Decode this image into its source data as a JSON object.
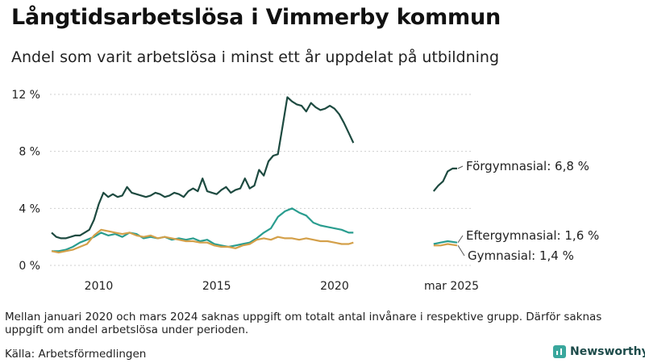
{
  "title": "Långtidsarbetslösa i Vimmerby kommun",
  "subtitle": "Andel som varit arbetslösa i minst ett år uppdelat på utbildning",
  "note": "Mellan januari 2020 och mars 2024 saknas uppgift om totalt antal invånare i respektive grupp. Därför saknas uppgift om andel arbetslösa under perioden.",
  "source": "Källa: Arbetsförmedlingen",
  "brand": "Newsworthy",
  "brand_icon": "newsworthy-logo-icon",
  "chart_data": {
    "type": "line",
    "ylim": [
      0,
      12
    ],
    "yticks": [
      0,
      4,
      8,
      12
    ],
    "ytick_labels": [
      "0 %",
      "4 %",
      "8 %",
      "12 %"
    ],
    "xticks": [
      2010,
      2015,
      2020,
      2025.2
    ],
    "xtick_labels": [
      "2010",
      "2015",
      "2020",
      "mar 2025"
    ],
    "grid": "horizontal",
    "colors": {
      "Förgymnasial": "#1d4a40",
      "Eftergymnasial": "#2a9d8f",
      "Gymnasial": "#d4a04a"
    },
    "series": [
      {
        "name": "Förgymnasial",
        "end_label": "Förgymnasial: 6,8 %",
        "segments": [
          [
            [
              2008.0,
              2.3
            ],
            [
              2008.2,
              2.0
            ],
            [
              2008.4,
              1.9
            ],
            [
              2008.6,
              1.9
            ],
            [
              2008.8,
              2.0
            ],
            [
              2009.0,
              2.1
            ],
            [
              2009.2,
              2.1
            ],
            [
              2009.4,
              2.3
            ],
            [
              2009.6,
              2.5
            ],
            [
              2009.8,
              3.2
            ],
            [
              2010.0,
              4.3
            ],
            [
              2010.2,
              5.1
            ],
            [
              2010.4,
              4.8
            ],
            [
              2010.6,
              5.0
            ],
            [
              2010.8,
              4.8
            ],
            [
              2011.0,
              4.9
            ],
            [
              2011.2,
              5.5
            ],
            [
              2011.4,
              5.1
            ],
            [
              2011.6,
              5.0
            ],
            [
              2011.8,
              4.9
            ],
            [
              2012.0,
              4.8
            ],
            [
              2012.2,
              4.9
            ],
            [
              2012.4,
              5.1
            ],
            [
              2012.6,
              5.0
            ],
            [
              2012.8,
              4.8
            ],
            [
              2013.0,
              4.9
            ],
            [
              2013.2,
              5.1
            ],
            [
              2013.4,
              5.0
            ],
            [
              2013.6,
              4.8
            ],
            [
              2013.8,
              5.2
            ],
            [
              2014.0,
              5.4
            ],
            [
              2014.2,
              5.2
            ],
            [
              2014.4,
              6.1
            ],
            [
              2014.6,
              5.2
            ],
            [
              2014.8,
              5.1
            ],
            [
              2015.0,
              5.0
            ],
            [
              2015.2,
              5.3
            ],
            [
              2015.4,
              5.5
            ],
            [
              2015.6,
              5.1
            ],
            [
              2015.8,
              5.3
            ],
            [
              2016.0,
              5.4
            ],
            [
              2016.2,
              6.1
            ],
            [
              2016.4,
              5.4
            ],
            [
              2016.6,
              5.6
            ],
            [
              2016.8,
              6.7
            ],
            [
              2017.0,
              6.3
            ],
            [
              2017.2,
              7.3
            ],
            [
              2017.4,
              7.7
            ],
            [
              2017.6,
              7.8
            ],
            [
              2017.8,
              9.8
            ],
            [
              2018.0,
              11.8
            ],
            [
              2018.2,
              11.5
            ],
            [
              2018.4,
              11.3
            ],
            [
              2018.6,
              11.2
            ],
            [
              2018.8,
              10.8
            ],
            [
              2019.0,
              11.4
            ],
            [
              2019.2,
              11.1
            ],
            [
              2019.4,
              10.9
            ],
            [
              2019.6,
              11.0
            ],
            [
              2019.8,
              11.2
            ],
            [
              2020.0,
              11.0
            ],
            [
              2020.2,
              10.6
            ],
            [
              2020.4,
              10.0
            ],
            [
              2020.6,
              9.3
            ],
            [
              2020.8,
              8.6
            ]
          ],
          [
            [
              2024.2,
              5.2
            ],
            [
              2024.4,
              5.6
            ],
            [
              2024.6,
              5.9
            ],
            [
              2024.8,
              6.6
            ],
            [
              2025.0,
              6.8
            ],
            [
              2025.2,
              6.8
            ]
          ]
        ]
      },
      {
        "name": "Eftergymnasial",
        "end_label": "Eftergymnasial: 1,6 %",
        "segments": [
          [
            [
              2008.0,
              1.0
            ],
            [
              2008.3,
              1.0
            ],
            [
              2008.6,
              1.1
            ],
            [
              2008.9,
              1.3
            ],
            [
              2009.2,
              1.6
            ],
            [
              2009.5,
              1.8
            ],
            [
              2009.8,
              2.0
            ],
            [
              2010.1,
              2.3
            ],
            [
              2010.4,
              2.1
            ],
            [
              2010.7,
              2.2
            ],
            [
              2011.0,
              2.0
            ],
            [
              2011.3,
              2.3
            ],
            [
              2011.6,
              2.2
            ],
            [
              2011.9,
              1.9
            ],
            [
              2012.2,
              2.0
            ],
            [
              2012.5,
              1.9
            ],
            [
              2012.8,
              2.0
            ],
            [
              2013.1,
              1.8
            ],
            [
              2013.4,
              1.9
            ],
            [
              2013.7,
              1.8
            ],
            [
              2014.0,
              1.9
            ],
            [
              2014.3,
              1.7
            ],
            [
              2014.6,
              1.8
            ],
            [
              2014.9,
              1.5
            ],
            [
              2015.2,
              1.4
            ],
            [
              2015.5,
              1.3
            ],
            [
              2015.8,
              1.4
            ],
            [
              2016.1,
              1.5
            ],
            [
              2016.4,
              1.6
            ],
            [
              2016.7,
              1.9
            ],
            [
              2017.0,
              2.3
            ],
            [
              2017.3,
              2.6
            ],
            [
              2017.6,
              3.4
            ],
            [
              2017.9,
              3.8
            ],
            [
              2018.2,
              4.0
            ],
            [
              2018.5,
              3.7
            ],
            [
              2018.8,
              3.5
            ],
            [
              2019.1,
              3.0
            ],
            [
              2019.4,
              2.8
            ],
            [
              2019.7,
              2.7
            ],
            [
              2020.0,
              2.6
            ],
            [
              2020.3,
              2.5
            ],
            [
              2020.6,
              2.3
            ],
            [
              2020.8,
              2.3
            ]
          ],
          [
            [
              2024.2,
              1.5
            ],
            [
              2024.5,
              1.6
            ],
            [
              2024.8,
              1.7
            ],
            [
              2025.2,
              1.6
            ]
          ]
        ]
      },
      {
        "name": "Gymnasial",
        "end_label": "Gymnasial: 1,4 %",
        "segments": [
          [
            [
              2008.0,
              1.0
            ],
            [
              2008.3,
              0.9
            ],
            [
              2008.6,
              1.0
            ],
            [
              2008.9,
              1.1
            ],
            [
              2009.2,
              1.3
            ],
            [
              2009.5,
              1.5
            ],
            [
              2009.8,
              2.1
            ],
            [
              2010.1,
              2.5
            ],
            [
              2010.4,
              2.4
            ],
            [
              2010.7,
              2.3
            ],
            [
              2011.0,
              2.2
            ],
            [
              2011.3,
              2.3
            ],
            [
              2011.6,
              2.1
            ],
            [
              2011.9,
              2.0
            ],
            [
              2012.2,
              2.1
            ],
            [
              2012.5,
              1.9
            ],
            [
              2012.8,
              2.0
            ],
            [
              2013.1,
              1.9
            ],
            [
              2013.4,
              1.8
            ],
            [
              2013.7,
              1.7
            ],
            [
              2014.0,
              1.7
            ],
            [
              2014.3,
              1.6
            ],
            [
              2014.6,
              1.6
            ],
            [
              2014.9,
              1.4
            ],
            [
              2015.2,
              1.3
            ],
            [
              2015.5,
              1.3
            ],
            [
              2015.8,
              1.2
            ],
            [
              2016.1,
              1.4
            ],
            [
              2016.4,
              1.5
            ],
            [
              2016.7,
              1.8
            ],
            [
              2017.0,
              1.9
            ],
            [
              2017.3,
              1.8
            ],
            [
              2017.6,
              2.0
            ],
            [
              2017.9,
              1.9
            ],
            [
              2018.2,
              1.9
            ],
            [
              2018.5,
              1.8
            ],
            [
              2018.8,
              1.9
            ],
            [
              2019.1,
              1.8
            ],
            [
              2019.4,
              1.7
            ],
            [
              2019.7,
              1.7
            ],
            [
              2020.0,
              1.6
            ],
            [
              2020.3,
              1.5
            ],
            [
              2020.6,
              1.5
            ],
            [
              2020.8,
              1.6
            ]
          ],
          [
            [
              2024.2,
              1.4
            ],
            [
              2024.5,
              1.4
            ],
            [
              2024.8,
              1.5
            ],
            [
              2025.2,
              1.4
            ]
          ]
        ]
      }
    ]
  }
}
